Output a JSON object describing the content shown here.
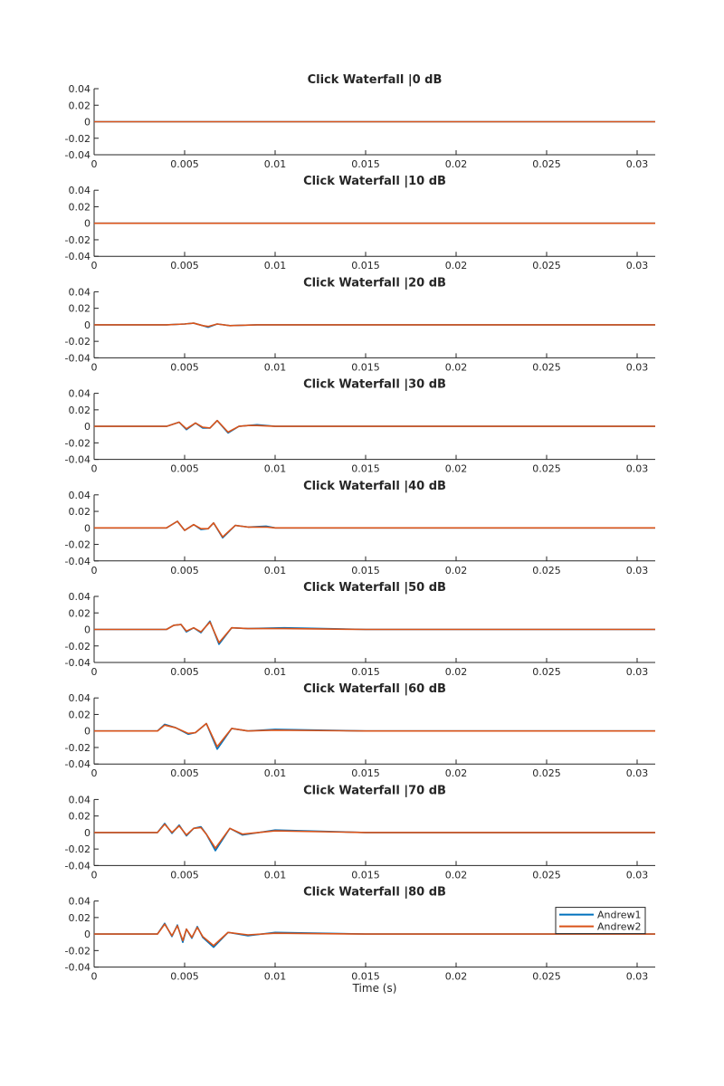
{
  "colors": {
    "background": "#ffffff",
    "axis": "#262626",
    "series1": "#0072bd",
    "series2": "#d95319"
  },
  "xlabel": "Time (s)",
  "legend": {
    "placement": "top-right of bottom panel"
  },
  "chart_data": {
    "type": "line",
    "xlim": [
      0,
      0.031
    ],
    "ylim": [
      -0.04,
      0.04
    ],
    "x_ticks": [
      0,
      0.005,
      0.01,
      0.015,
      0.02,
      0.025,
      0.03
    ],
    "x_tick_labels": [
      "0",
      "0.005",
      "0.01",
      "0.015",
      "0.02",
      "0.025",
      "0.03"
    ],
    "y_ticks": [
      0.04,
      0.02,
      0,
      -0.02,
      -0.04
    ],
    "y_tick_labels": [
      "0.04",
      "0.02",
      "0",
      "-0.02",
      "-0.04"
    ],
    "series_names": [
      "Andrew1",
      "Andrew2"
    ],
    "panels": [
      {
        "title": "Click Waterfall |0 dB",
        "series": [
          {
            "name": "Andrew1",
            "x": [
              0,
              0.004,
              0.005,
              0.006,
              0.007,
              0.008,
              0.01,
              0.015,
              0.02,
              0.025,
              0.031
            ],
            "y": [
              0,
              0,
              0,
              0,
              0,
              0,
              0,
              0,
              0,
              0,
              0
            ]
          },
          {
            "name": "Andrew2",
            "x": [
              0,
              0.004,
              0.005,
              0.006,
              0.007,
              0.008,
              0.01,
              0.015,
              0.02,
              0.025,
              0.031
            ],
            "y": [
              0,
              0,
              0,
              0,
              0,
              0,
              0,
              0,
              0,
              0,
              0
            ]
          }
        ]
      },
      {
        "title": "Click Waterfall |10 dB",
        "series": [
          {
            "name": "Andrew1",
            "x": [
              0,
              0.004,
              0.005,
              0.006,
              0.007,
              0.008,
              0.01,
              0.015,
              0.02,
              0.025,
              0.031
            ],
            "y": [
              0,
              0,
              0,
              0,
              0,
              0,
              0,
              0,
              0,
              0,
              0
            ]
          },
          {
            "name": "Andrew2",
            "x": [
              0,
              0.004,
              0.005,
              0.006,
              0.007,
              0.008,
              0.01,
              0.015,
              0.02,
              0.025,
              0.031
            ],
            "y": [
              0,
              0,
              0,
              0,
              0,
              0,
              0,
              0,
              0,
              0,
              0
            ]
          }
        ]
      },
      {
        "title": "Click Waterfall |20 dB",
        "series": [
          {
            "name": "Andrew1",
            "x": [
              0,
              0.004,
              0.005,
              0.0055,
              0.006,
              0.0063,
              0.0068,
              0.0075,
              0.009,
              0.015,
              0.02,
              0.025,
              0.031
            ],
            "y": [
              0,
              0,
              0.001,
              0.002,
              -0.001,
              -0.003,
              0.001,
              -0.001,
              0,
              0,
              0,
              0,
              0
            ]
          },
          {
            "name": "Andrew2",
            "x": [
              0,
              0.004,
              0.005,
              0.0055,
              0.006,
              0.0063,
              0.0068,
              0.0075,
              0.009,
              0.015,
              0.02,
              0.025,
              0.031
            ],
            "y": [
              0,
              0,
              0.001,
              0.002,
              -0.001,
              -0.002,
              0.001,
              -0.001,
              0,
              0,
              0,
              0,
              0
            ]
          }
        ]
      },
      {
        "title": "Click Waterfall |30 dB",
        "series": [
          {
            "name": "Andrew1",
            "x": [
              0,
              0.004,
              0.0047,
              0.0051,
              0.0056,
              0.006,
              0.0064,
              0.0068,
              0.0074,
              0.008,
              0.0085,
              0.009,
              0.01,
              0.015,
              0.02,
              0.025,
              0.031
            ],
            "y": [
              0,
              0,
              0.005,
              -0.004,
              0.004,
              -0.002,
              -0.002,
              0.007,
              -0.008,
              0,
              0.001,
              0.002,
              0,
              0,
              0,
              0,
              0
            ]
          },
          {
            "name": "Andrew2",
            "x": [
              0,
              0.004,
              0.0047,
              0.0051,
              0.0056,
              0.006,
              0.0064,
              0.0068,
              0.0074,
              0.008,
              0.0085,
              0.009,
              0.01,
              0.015,
              0.02,
              0.025,
              0.031
            ],
            "y": [
              0,
              0,
              0.005,
              -0.003,
              0.004,
              -0.001,
              -0.002,
              0.007,
              -0.007,
              0,
              0.001,
              0.001,
              0,
              0,
              0,
              0,
              0
            ]
          }
        ]
      },
      {
        "title": "Click Waterfall |40 dB",
        "series": [
          {
            "name": "Andrew1",
            "x": [
              0,
              0.004,
              0.0046,
              0.005,
              0.0055,
              0.0059,
              0.0063,
              0.0066,
              0.0071,
              0.0078,
              0.0085,
              0.0095,
              0.01,
              0.015,
              0.02,
              0.025,
              0.031
            ],
            "y": [
              0,
              0,
              0.008,
              -0.003,
              0.004,
              -0.002,
              -0.001,
              0.006,
              -0.012,
              0.003,
              0.001,
              0.002,
              0,
              0,
              0,
              0,
              0
            ]
          },
          {
            "name": "Andrew2",
            "x": [
              0,
              0.004,
              0.0046,
              0.005,
              0.0055,
              0.0059,
              0.0063,
              0.0066,
              0.0071,
              0.0078,
              0.0085,
              0.0095,
              0.01,
              0.015,
              0.02,
              0.025,
              0.031
            ],
            "y": [
              0,
              0,
              0.008,
              -0.003,
              0.004,
              -0.001,
              -0.001,
              0.006,
              -0.011,
              0.003,
              0.001,
              0.001,
              0,
              0,
              0,
              0,
              0
            ]
          }
        ]
      },
      {
        "title": "Click Waterfall |50 dB",
        "series": [
          {
            "name": "Andrew1",
            "x": [
              0,
              0.004,
              0.0044,
              0.0048,
              0.0051,
              0.0055,
              0.0059,
              0.0064,
              0.0069,
              0.0076,
              0.0085,
              0.0105,
              0.015,
              0.02,
              0.025,
              0.031
            ],
            "y": [
              0,
              0,
              0.005,
              0.006,
              -0.003,
              0.002,
              -0.004,
              0.01,
              -0.018,
              0.002,
              0.001,
              0.002,
              0,
              0,
              0,
              0
            ]
          },
          {
            "name": "Andrew2",
            "x": [
              0,
              0.004,
              0.0044,
              0.0048,
              0.0051,
              0.0055,
              0.0059,
              0.0064,
              0.0069,
              0.0076,
              0.0085,
              0.0105,
              0.015,
              0.02,
              0.025,
              0.031
            ],
            "y": [
              0,
              0,
              0.005,
              0.006,
              -0.002,
              0.002,
              -0.003,
              0.009,
              -0.016,
              0.002,
              0.001,
              0.001,
              0,
              0,
              0,
              0
            ]
          }
        ]
      },
      {
        "title": "Click Waterfall |60 dB",
        "series": [
          {
            "name": "Andrew1",
            "x": [
              0,
              0.0035,
              0.0039,
              0.0045,
              0.0052,
              0.0056,
              0.0062,
              0.0068,
              0.0076,
              0.0085,
              0.01,
              0.015,
              0.02,
              0.025,
              0.031
            ],
            "y": [
              0,
              0,
              0.008,
              0.004,
              -0.004,
              -0.002,
              0.009,
              -0.022,
              0.003,
              0,
              0.002,
              0,
              0,
              0,
              0
            ]
          },
          {
            "name": "Andrew2",
            "x": [
              0,
              0.0035,
              0.0039,
              0.0045,
              0.0052,
              0.0056,
              0.0062,
              0.0068,
              0.0076,
              0.0085,
              0.01,
              0.015,
              0.02,
              0.025,
              0.031
            ],
            "y": [
              0,
              0,
              0.007,
              0.004,
              -0.003,
              -0.002,
              0.009,
              -0.019,
              0.003,
              0,
              0.001,
              0,
              0,
              0,
              0
            ]
          }
        ]
      },
      {
        "title": "Click Waterfall |70 dB",
        "series": [
          {
            "name": "Andrew1",
            "x": [
              0,
              0.0035,
              0.0039,
              0.0043,
              0.0047,
              0.0051,
              0.0055,
              0.0059,
              0.0062,
              0.0067,
              0.0075,
              0.0082,
              0.01,
              0.015,
              0.02,
              0.025,
              0.031
            ],
            "y": [
              0,
              0,
              0.011,
              -0.001,
              0.009,
              -0.004,
              0.005,
              0.007,
              -0.002,
              -0.022,
              0.005,
              -0.003,
              0.003,
              0,
              0,
              0,
              0
            ]
          },
          {
            "name": "Andrew2",
            "x": [
              0,
              0.0035,
              0.0039,
              0.0043,
              0.0047,
              0.0051,
              0.0055,
              0.0059,
              0.0062,
              0.0067,
              0.0075,
              0.0082,
              0.01,
              0.015,
              0.02,
              0.025,
              0.031
            ],
            "y": [
              0,
              0,
              0.01,
              0,
              0.008,
              -0.003,
              0.005,
              0.006,
              -0.002,
              -0.019,
              0.005,
              -0.002,
              0.002,
              0,
              0,
              0,
              0
            ]
          }
        ]
      },
      {
        "title": "Click Waterfall |80 dB",
        "series": [
          {
            "name": "Andrew1",
            "x": [
              0,
              0.0035,
              0.0039,
              0.0043,
              0.0046,
              0.0049,
              0.0051,
              0.0054,
              0.0057,
              0.006,
              0.0066,
              0.0074,
              0.0085,
              0.01,
              0.015,
              0.02,
              0.025,
              0.031
            ],
            "y": [
              0,
              0,
              0.013,
              -0.003,
              0.011,
              -0.01,
              0.006,
              -0.005,
              0.009,
              -0.004,
              -0.016,
              0.002,
              -0.002,
              0.002,
              0,
              0,
              0,
              0
            ]
          },
          {
            "name": "Andrew2",
            "x": [
              0,
              0.0035,
              0.0039,
              0.0043,
              0.0046,
              0.0049,
              0.0051,
              0.0054,
              0.0057,
              0.006,
              0.0066,
              0.0074,
              0.0085,
              0.01,
              0.015,
              0.02,
              0.025,
              0.031
            ],
            "y": [
              0,
              0,
              0.012,
              -0.002,
              0.01,
              -0.008,
              0.006,
              -0.004,
              0.008,
              -0.003,
              -0.014,
              0.002,
              -0.001,
              0.001,
              0,
              0,
              0,
              0
            ]
          }
        ]
      }
    ]
  }
}
